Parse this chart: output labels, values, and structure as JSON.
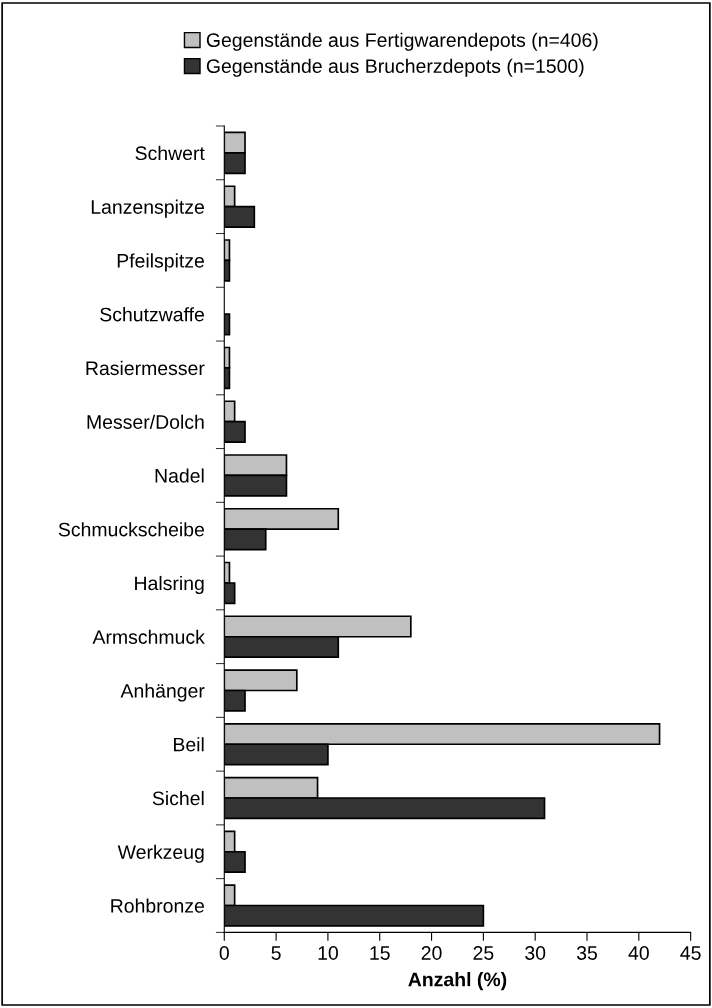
{
  "chart_data": {
    "type": "bar",
    "orientation": "horizontal",
    "xlabel": "Anzahl (%)",
    "categories": [
      "Schwert",
      "Lanzenspitze",
      "Pfeilspitze",
      "Schutzwaffe",
      "Rasiermesser",
      "Messer/Dolch",
      "Nadel",
      "Schmuckscheibe",
      "Halsring",
      "Armschmuck",
      "Anhänger",
      "Beil",
      "Sichel",
      "Werkzeug",
      "Rohbronze"
    ],
    "series": [
      {
        "name": "Gegenstände aus Fertigwarendepots (n=406)",
        "color": "#c0c0c0",
        "values": [
          2,
          1,
          0.5,
          null,
          0.5,
          1,
          6,
          11,
          0.5,
          18,
          7,
          42,
          9,
          1,
          1
        ]
      },
      {
        "name": "Gegenstände aus Brucherzdepots (n=1500)",
        "color": "#333333",
        "values": [
          2,
          2.9,
          0.5,
          0.5,
          0.5,
          2,
          6,
          4,
          1,
          11,
          2,
          10,
          30.9,
          2,
          25
        ]
      }
    ],
    "xlim": [
      0,
      45
    ],
    "xticks": [
      0,
      5,
      10,
      15,
      20,
      25,
      30,
      35,
      40,
      45
    ],
    "grid": false,
    "legend": "top"
  }
}
